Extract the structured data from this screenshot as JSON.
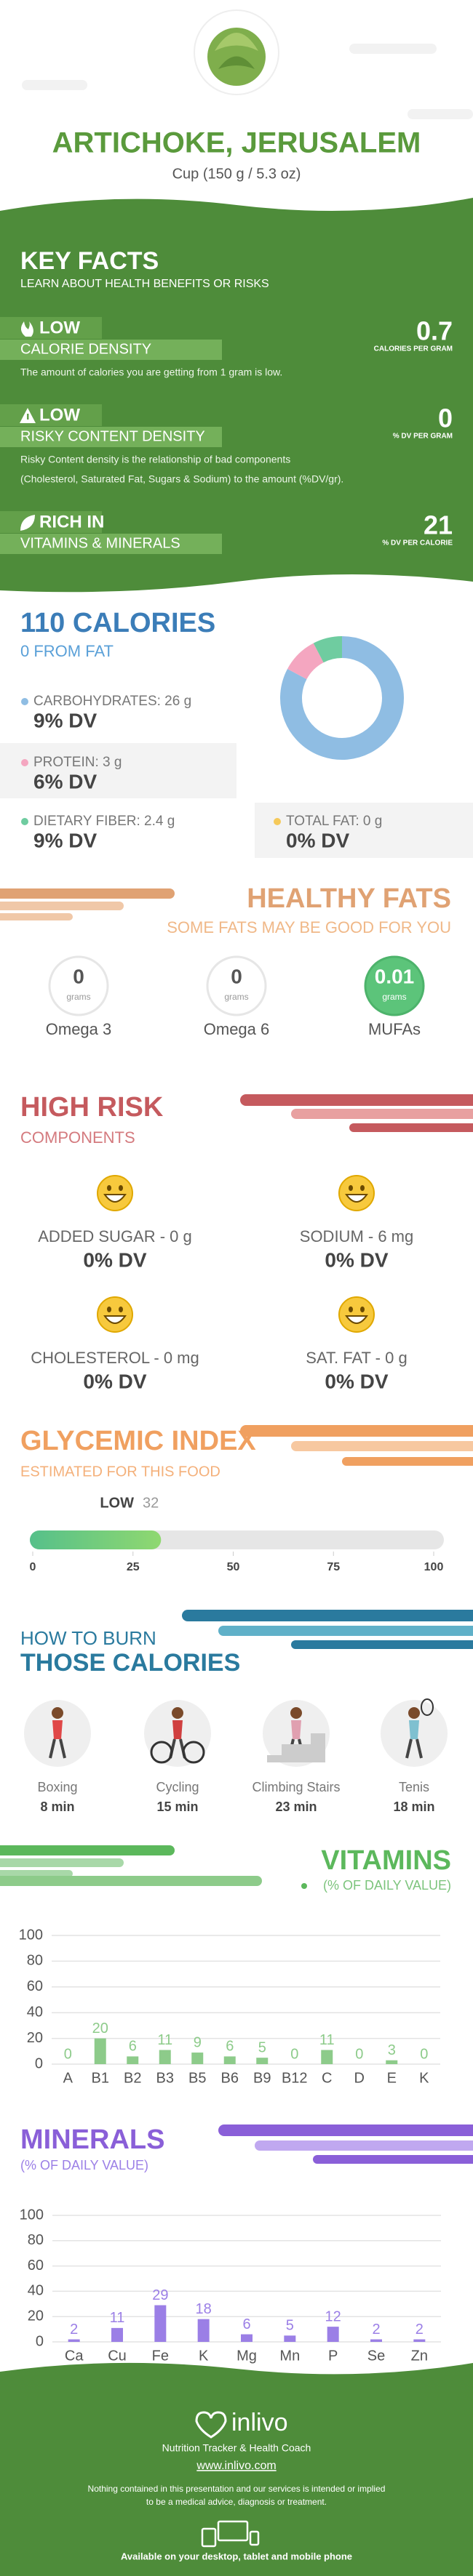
{
  "header": {
    "title": "ARTICHOKE, JERUSALEM",
    "serving": "Cup (150 g / 5.3 oz)"
  },
  "key_facts": {
    "title": "KEY FACTS",
    "subtitle": "LEARN ABOUT HEALTH BENEFITS OR RISKS",
    "items": [
      {
        "level": "LOW",
        "label": "CALORIE DENSITY",
        "value": 0.7,
        "unit": "CALORIES PER GRAM",
        "description": [
          "The amount of calories you are getting from 1 gram is low."
        ]
      },
      {
        "level": "LOW",
        "label": "RISKY CONTENT DENSITY",
        "value": 0,
        "unit": "% DV PER GRAM",
        "description": [
          "Risky Content density is the relationship of bad components",
          "(Cholesterol, Saturated Fat, Sugars & Sodium) to the amount (%DV/gr)."
        ]
      },
      {
        "level": "RICH  IN",
        "label": "VITAMINS & MINERALS",
        "value": 21,
        "unit": "% DV PER CALORIE"
      }
    ]
  },
  "calories": {
    "title": "110 CALORIES",
    "subtitle": "0 FROM FAT",
    "nutrients": [
      {
        "label": "CARBOHYDRATES: 26 g",
        "grams": 26,
        "dv": "9% DV",
        "color": "#8fbde3"
      },
      {
        "label": "PROTEIN: 3 g",
        "grams": 3,
        "dv": "6% DV",
        "color": "#f4a6c0"
      },
      {
        "label": "DIETARY FIBER: 2.4 g",
        "grams": 2.4,
        "dv": "9% DV",
        "color": "#6fcca0"
      },
      {
        "label": "TOTAL FAT: 0 g",
        "dv": "0% DV",
        "color": "#f5c95a"
      }
    ]
  },
  "healthy_fats": {
    "title": "HEALTHY FATS",
    "subtitle": "SOME FATS MAY BE GOOD FOR YOU",
    "unit": "grams",
    "items": [
      {
        "name": "Omega 3",
        "value": 0
      },
      {
        "name": "Omega 6",
        "value": 0
      },
      {
        "name": "MUFAs",
        "value": 0.01
      }
    ]
  },
  "high_risk": {
    "title": "HIGH RISK",
    "subtitle": "COMPONENTS",
    "items": [
      {
        "label": "ADDED SUGAR - 0 g",
        "dv": "0% DV"
      },
      {
        "label": "SODIUM - 6 mg",
        "dv": "0% DV"
      },
      {
        "label": "CHOLESTEROL - 0 mg",
        "dv": "0% DV"
      },
      {
        "label": "SAT. FAT - 0 g",
        "dv": "0% DV"
      }
    ]
  },
  "glycemic": {
    "title": "GLYCEMIC INDEX",
    "subtitle": "ESTIMATED FOR THIS FOOD",
    "level": "LOW",
    "value": 32,
    "xlim": [
      0,
      100
    ],
    "xticks": [
      0,
      25,
      50,
      75,
      100
    ]
  },
  "burn": {
    "title_line1": "HOW TO BURN",
    "title_line2": "THOSE CALORIES",
    "activities": [
      {
        "name": "Boxing",
        "time": "8 min"
      },
      {
        "name": "Cycling",
        "time": "15 min"
      },
      {
        "name": "Climbing Stairs",
        "time": "23 min"
      },
      {
        "name": "Tenis",
        "time": "18 min"
      }
    ]
  },
  "vitamins": {
    "type": "bar",
    "title": "VITAMINS",
    "subtitle": "(% OF DAILY VALUE)",
    "categories": [
      "A",
      "B1",
      "B2",
      "B3",
      "B5",
      "B6",
      "B9",
      "B12",
      "C",
      "D",
      "E",
      "K"
    ],
    "values": [
      0,
      20,
      6,
      11,
      9,
      6,
      5,
      0,
      11,
      0,
      3,
      0
    ],
    "color": "#8dcb8a",
    "ylim": [
      0,
      100
    ],
    "yticks": [
      0,
      20,
      40,
      60,
      80,
      100
    ],
    "grid": true
  },
  "minerals": {
    "type": "bar",
    "title": "MINERALS",
    "subtitle": "(% OF DAILY VALUE)",
    "categories": [
      "Ca",
      "Cu",
      "Fe",
      "K",
      "Mg",
      "Mn",
      "P",
      "Se",
      "Zn"
    ],
    "values": [
      2,
      11,
      29,
      18,
      6,
      5,
      12,
      2,
      2
    ],
    "color": "#9b7fe6",
    "ylim": [
      0,
      100
    ],
    "yticks": [
      0,
      20,
      40,
      60,
      80,
      100
    ],
    "grid": true
  },
  "footer": {
    "brand": "inlivo",
    "tagline": "Nutrition Tracker & Health Coach",
    "url": "www.inlivo.com",
    "disclaimer": [
      "Nothing contained in this presentation and our services is intended or implied",
      "to be a medical advice, diagnosis or treatment."
    ],
    "availability": "Available on your desktop, tablet and mobile phone"
  }
}
